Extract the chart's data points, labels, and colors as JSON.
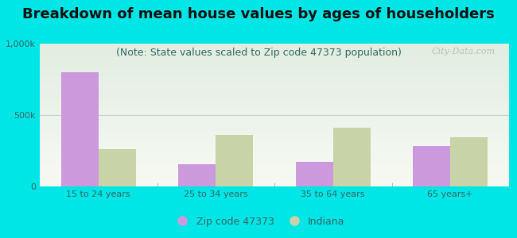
{
  "title": "Breakdown of mean house values by ages of householders",
  "subtitle": "(Note: State values scaled to Zip code 47373 population)",
  "categories": [
    "15 to 24 years",
    "25 to 34 years",
    "35 to 64 years",
    "65 years+"
  ],
  "zip_values": [
    800000,
    155000,
    175000,
    285000
  ],
  "state_values": [
    260000,
    360000,
    410000,
    345000
  ],
  "zip_color": "#cc99dd",
  "state_color": "#c8d4a8",
  "background_outer": "#00e5e5",
  "background_inner_top": "#e8f2e8",
  "background_inner_bottom": "#f5f8f0",
  "ylim": [
    0,
    1000000
  ],
  "yticks": [
    0,
    500000,
    1000000
  ],
  "ytick_labels": [
    "0",
    "500k",
    "1,000k"
  ],
  "zip_label": "Zip code 47373",
  "state_label": "Indiana",
  "title_fontsize": 13,
  "subtitle_fontsize": 9,
  "watermark": "City-Data.com",
  "bar_width": 0.32,
  "title_color": "#111111",
  "subtitle_color": "#336666",
  "tick_color": "#336666",
  "separator_color": "#bbbbbb"
}
